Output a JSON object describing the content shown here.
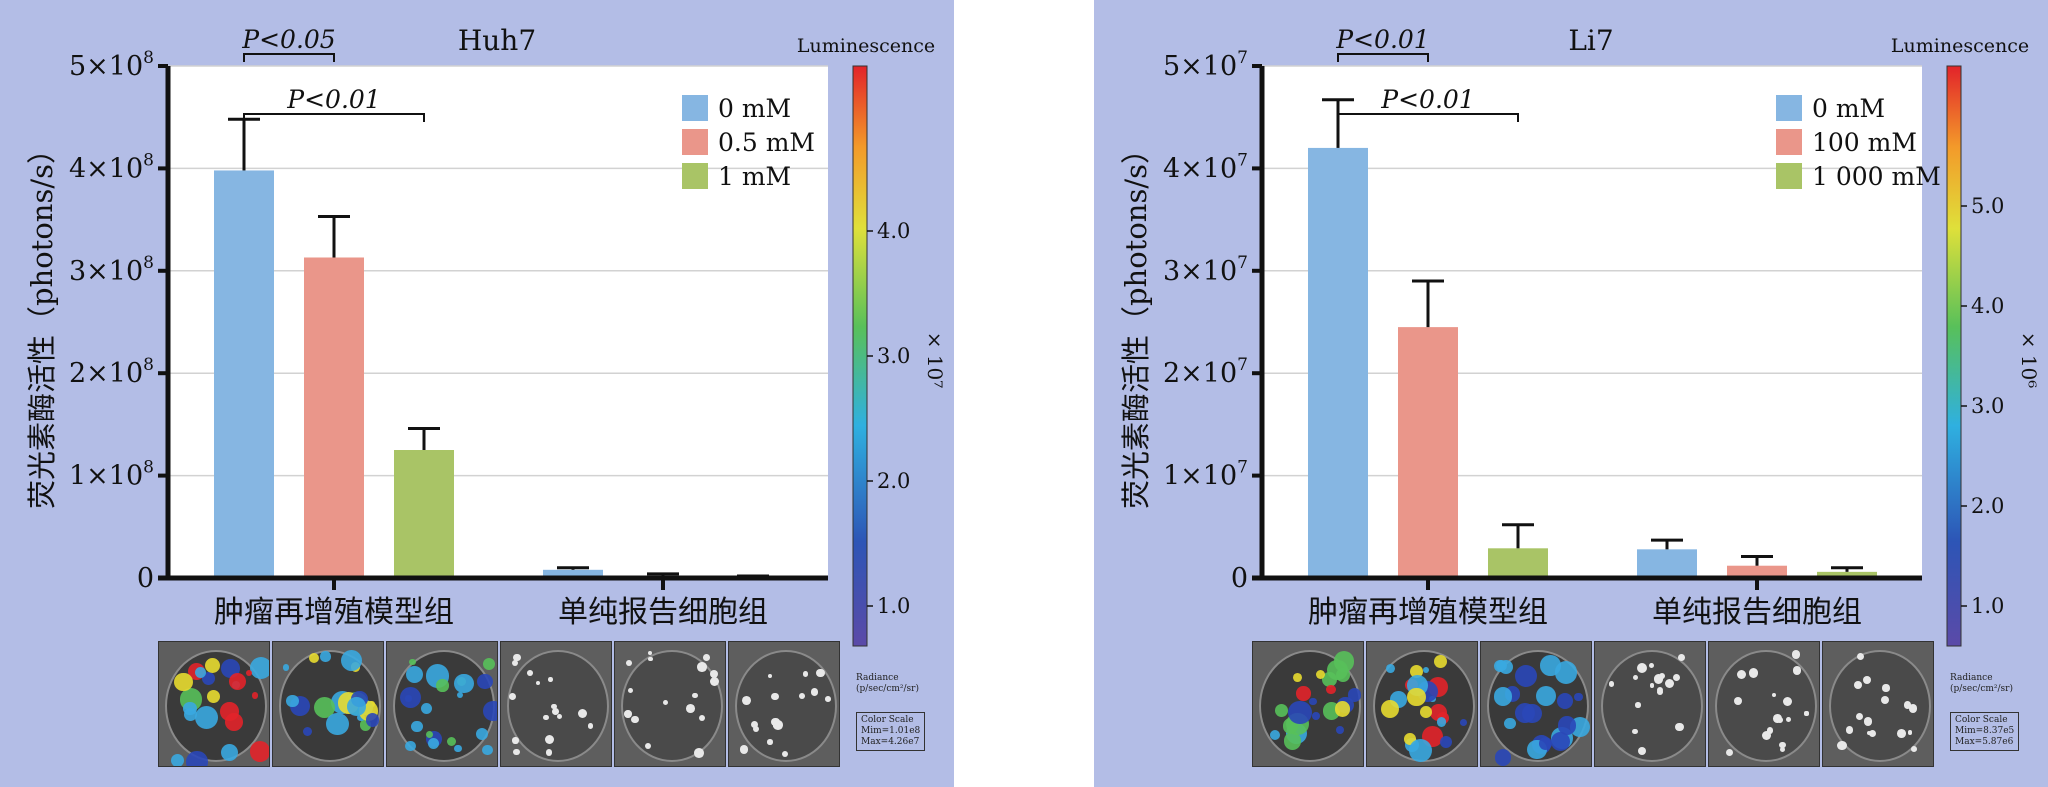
{
  "chart_data": [
    {
      "type": "bar",
      "title": "Huh7",
      "ylabel": "荧光素酶活性（photons/s）",
      "ylim": [
        0,
        500000000
      ],
      "yticks": [
        {
          "value": 0,
          "base": "0",
          "exp": ""
        },
        {
          "value": 100000000,
          "base": "1×10",
          "exp": "8"
        },
        {
          "value": 200000000,
          "base": "2×10",
          "exp": "8"
        },
        {
          "value": 300000000,
          "base": "3×10",
          "exp": "8"
        },
        {
          "value": 400000000,
          "base": "4×10",
          "exp": "8"
        },
        {
          "value": 500000000,
          "base": "5×10",
          "exp": "8"
        }
      ],
      "categories": [
        "肿瘤再增殖模型组",
        "单纯报告细胞组"
      ],
      "series": [
        {
          "name": "0 mM",
          "color": "#86b6e2",
          "values": [
            398000000,
            8000000
          ],
          "errors": [
            50000000,
            2000000
          ]
        },
        {
          "name": "0.5 mM",
          "color": "#ea968a",
          "values": [
            313000000,
            2000000
          ],
          "errors": [
            40000000,
            2000000
          ]
        },
        {
          "name": "1 mM",
          "color": "#a9c466",
          "values": [
            125000000,
            1000000
          ],
          "errors": [
            21000000,
            1000000
          ]
        }
      ],
      "significance": [
        {
          "text": "P<0.05",
          "from": 0,
          "to": 1
        },
        {
          "text": "P<0.01",
          "from": 0,
          "to": 2
        }
      ],
      "colorbar": {
        "title": "Luminescence",
        "ticks": [
          "1.0",
          "2.0",
          "3.0",
          "4.0"
        ],
        "multiplier": "× 10⁷",
        "radiance": "Radiance",
        "radiance_unit": "(p/sec/cm²/sr)",
        "scale_title": "Color Scale",
        "scale_min": "Mim=1.01e8",
        "scale_max": "Max=4.26e7"
      }
    },
    {
      "type": "bar",
      "title": "Li7",
      "ylabel": "荧光素酶活性（photons/s）",
      "ylim": [
        0,
        50000000
      ],
      "yticks": [
        {
          "value": 0,
          "base": "0",
          "exp": ""
        },
        {
          "value": 10000000,
          "base": "1×10",
          "exp": "7"
        },
        {
          "value": 20000000,
          "base": "2×10",
          "exp": "7"
        },
        {
          "value": 30000000,
          "base": "3×10",
          "exp": "7"
        },
        {
          "value": 40000000,
          "base": "4×10",
          "exp": "7"
        },
        {
          "value": 50000000,
          "base": "5×10",
          "exp": "7"
        }
      ],
      "categories": [
        "肿瘤再增殖模型组",
        "单纯报告细胞组"
      ],
      "series": [
        {
          "name": "0 mM",
          "color": "#86b6e2",
          "values": [
            42000000,
            2800000
          ],
          "errors": [
            4700000,
            900000
          ]
        },
        {
          "name": "100 mM",
          "color": "#ea968a",
          "values": [
            24500000,
            1200000
          ],
          "errors": [
            4500000,
            900000
          ]
        },
        {
          "name": "1 000 mM",
          "color": "#a9c466",
          "values": [
            2900000,
            600000
          ],
          "errors": [
            2300000,
            400000
          ]
        }
      ],
      "significance": [
        {
          "text": "P<0.01",
          "from": 0,
          "to": 1
        },
        {
          "text": "P<0.01",
          "from": 0,
          "to": 2
        }
      ],
      "colorbar": {
        "title": "Luminescence",
        "ticks": [
          "1.0",
          "2.0",
          "3.0",
          "4.0",
          "5.0"
        ],
        "multiplier": "× 10⁶",
        "radiance": "Radiance",
        "radiance_unit": "(p/sec/cm²/sr)",
        "scale_title": "Color Scale",
        "scale_min": "Mim=8.37e5",
        "scale_max": "Max=5.87e6"
      }
    }
  ]
}
